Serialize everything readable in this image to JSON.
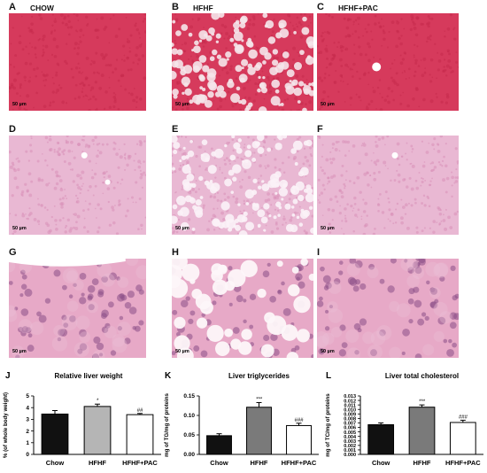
{
  "panels": [
    {
      "letter": "A",
      "condition": "CHOW",
      "scale": "50 µm",
      "stain": "red",
      "style": "dense"
    },
    {
      "letter": "B",
      "condition": "HFHF",
      "scale": "50 µm",
      "stain": "red",
      "style": "vacuoles"
    },
    {
      "letter": "C",
      "condition": "HFHF+PAC",
      "scale": "50 µm",
      "stain": "red",
      "style": "dense"
    },
    {
      "letter": "D",
      "condition": "",
      "scale": "50 µm",
      "stain": "pink",
      "style": "dense"
    },
    {
      "letter": "E",
      "condition": "",
      "scale": "50 µm",
      "stain": "pink",
      "style": "vacuoles"
    },
    {
      "letter": "F",
      "condition": "",
      "scale": "50 µm",
      "stain": "pink",
      "style": "dense"
    },
    {
      "letter": "G",
      "condition": "",
      "scale": "50 µm",
      "stain": "pinkhi",
      "style": "cells"
    },
    {
      "letter": "H",
      "condition": "",
      "scale": "50 µm",
      "stain": "pinkhi",
      "style": "bigvac"
    },
    {
      "letter": "I",
      "condition": "",
      "scale": "50 µm",
      "stain": "pinkhi",
      "style": "cells"
    }
  ],
  "colors": {
    "red_bg": "#d63a5c",
    "red_cell": "#c72a4d",
    "red_vac": "#f5e6ea",
    "pink_bg": "#e9b8d3",
    "pink_cell": "#d98fb8",
    "pinkhi_bg": "#e7a9c7",
    "pinkhi_nuc": "#8a4f86",
    "bar_chow": "#111111",
    "bar_hfhf_light": "#b5b5b5",
    "bar_hfhf_dark": "#7a7a7a",
    "bar_pac": "#ffffff"
  },
  "chart_data": [
    {
      "letter": "J",
      "type": "bar",
      "title": "Relative liver weight",
      "ylabel": "% (of whole body weight)",
      "ylim": [
        0,
        5
      ],
      "yticks": [
        "0",
        "1",
        "2",
        "3",
        "4",
        "5"
      ],
      "categories": [
        "Chow",
        "HFHF",
        "HFHF+PAC"
      ],
      "values": [
        3.45,
        4.1,
        3.4
      ],
      "errors": [
        0.3,
        0.2,
        0.1
      ],
      "annotations": [
        "",
        "*",
        "##"
      ],
      "bar_colors": [
        "#111111",
        "#b5b5b5",
        "#ffffff"
      ]
    },
    {
      "letter": "K",
      "type": "bar",
      "title": "Liver triglycerides",
      "ylabel": "mg of TG/mg of proteins",
      "ylim": [
        0,
        0.15
      ],
      "yticks": [
        "0.00",
        "0.05",
        "0.10",
        "0.15"
      ],
      "categories": [
        "Chow",
        "HFHF",
        "HFHF+PAC"
      ],
      "values": [
        0.048,
        0.121,
        0.074
      ],
      "errors": [
        0.005,
        0.012,
        0.006
      ],
      "annotations": [
        "",
        "***",
        "###"
      ],
      "bar_colors": [
        "#111111",
        "#7a7a7a",
        "#ffffff"
      ]
    },
    {
      "letter": "L",
      "type": "bar",
      "title": "Liver total cholesterol",
      "ylabel": "mg of TC/mg of proteins",
      "ylim": [
        0,
        0.013
      ],
      "yticks": [
        "0.000",
        "0.001",
        "0.002",
        "0.003",
        "0.004",
        "0.005",
        "0.006",
        "0.007",
        "0.008",
        "0.009",
        "0.010",
        "0.011",
        "0.012",
        "0.013"
      ],
      "categories": [
        "Chow",
        "HFHF",
        "HFHF+PAC"
      ],
      "values": [
        0.0066,
        0.0105,
        0.0071
      ],
      "errors": [
        0.0004,
        0.0005,
        0.0005
      ],
      "annotations": [
        "",
        "***",
        "###"
      ],
      "bar_colors": [
        "#111111",
        "#7a7a7a",
        "#ffffff"
      ]
    }
  ]
}
